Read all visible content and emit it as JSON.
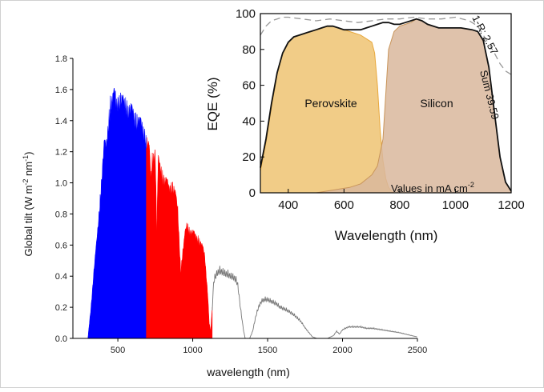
{
  "chart_data": [
    {
      "type": "area",
      "xlabel": "wavelength (nm)",
      "ylabel": "Global tilt (W m-2 nm-1)",
      "ylabel_parts": {
        "a": "Global tilt (W m",
        "sup1": "-2",
        "b": " nm",
        "sup2": "-1",
        "c": ")"
      },
      "xlim": [
        200,
        2500
      ],
      "ylim": [
        0,
        1.8
      ],
      "xticks": [
        "500",
        "1000",
        "1500",
        "2000",
        "2500"
      ],
      "yticks": [
        "0.0",
        "0.2",
        "0.4",
        "0.6",
        "0.8",
        "1.0",
        "1.2",
        "1.4",
        "1.6",
        "1.8"
      ],
      "grid": false,
      "colors": {
        "perovskite_band": "#0000ff",
        "silicon_band": "#ff0000",
        "unused": "#777777"
      },
      "bands": [
        {
          "from": 300,
          "to": 690,
          "color": "#0000ff"
        },
        {
          "from": 690,
          "to": 1130,
          "color": "#ff0000"
        }
      ],
      "series": [
        {
          "x": [
            300,
            320,
            340,
            360,
            380,
            400,
            410,
            420,
            430,
            440,
            450,
            460,
            470,
            480,
            490,
            500,
            520,
            540,
            560,
            580,
            600,
            620,
            640,
            660,
            680,
            690,
            700,
            710,
            720,
            730,
            740,
            750,
            760,
            770,
            780,
            800,
            820,
            840,
            860,
            880,
            900,
            920,
            930,
            940,
            950,
            960,
            980,
            1000,
            1020,
            1040,
            1060,
            1080,
            1100,
            1110,
            1120,
            1130,
            1140,
            1160,
            1180,
            1200,
            1220,
            1240,
            1260,
            1280,
            1300,
            1320,
            1340,
            1350,
            1380,
            1400,
            1420,
            1440,
            1460,
            1480,
            1500,
            1520,
            1540,
            1560,
            1580,
            1600,
            1640,
            1680,
            1720,
            1760,
            1800,
            1830,
            1860,
            1900,
            1940,
            1960,
            1980,
            2000,
            2040,
            2080,
            2120,
            2160,
            2200,
            2260,
            2320,
            2380,
            2420,
            2460,
            2500
          ],
          "y": [
            0.0,
            0.2,
            0.45,
            0.65,
            0.9,
            1.18,
            1.3,
            1.25,
            1.35,
            1.48,
            1.56,
            1.58,
            1.6,
            1.62,
            1.55,
            1.6,
            1.58,
            1.56,
            1.55,
            1.52,
            1.5,
            1.46,
            1.45,
            1.4,
            1.38,
            1.3,
            1.3,
            1.25,
            1.05,
            1.2,
            1.22,
            1.25,
            0.7,
            1.18,
            1.15,
            1.08,
            1.05,
            1.0,
            1.02,
            0.98,
            0.85,
            0.45,
            0.55,
            0.62,
            0.7,
            0.75,
            0.72,
            0.7,
            0.68,
            0.66,
            0.62,
            0.55,
            0.3,
            0.1,
            0.05,
            0.2,
            0.4,
            0.45,
            0.47,
            0.46,
            0.45,
            0.44,
            0.43,
            0.42,
            0.38,
            0.2,
            0.05,
            0.0,
            0.0,
            0.05,
            0.15,
            0.22,
            0.26,
            0.27,
            0.27,
            0.26,
            0.25,
            0.24,
            0.22,
            0.21,
            0.19,
            0.16,
            0.12,
            0.06,
            0.01,
            0.0,
            0.0,
            0.0,
            0.02,
            0.05,
            0.03,
            0.06,
            0.08,
            0.08,
            0.08,
            0.07,
            0.07,
            0.06,
            0.05,
            0.04,
            0.03,
            0.02,
            0.01
          ]
        }
      ]
    },
    {
      "type": "area",
      "xlabel": "Wavelength (nm)",
      "ylabel": "EQE (%)",
      "xlim": [
        300,
        1200
      ],
      "ylim": [
        0,
        100
      ],
      "xticks": [
        "400",
        "600",
        "800",
        "1000",
        "1200"
      ],
      "yticks": [
        "0",
        "20",
        "40",
        "60",
        "80",
        "100"
      ],
      "grid": false,
      "colors": {
        "perovskite": "#f0c67a",
        "silicon": "#d9b79c",
        "overlap": "#c9955a",
        "sum_line": "#111111",
        "one_minus_r": "#999999"
      },
      "annotations": {
        "perovskite_label": "Perovskite",
        "silicon_label": "Silicon",
        "sum_label": "Sum 39.59",
        "r_label": "1-R: 2.57",
        "units_prefix": "Values in mA cm",
        "units_sup": "-2"
      },
      "series": [
        {
          "name": "Perovskite",
          "x": [
            300,
            320,
            340,
            360,
            380,
            400,
            420,
            440,
            460,
            480,
            500,
            520,
            540,
            560,
            580,
            600,
            620,
            640,
            660,
            680,
            700,
            710,
            720,
            730,
            740,
            750,
            760,
            770,
            780,
            790,
            800
          ],
          "y": [
            12,
            28,
            48,
            66,
            78,
            84,
            87,
            88,
            89,
            90,
            91,
            92,
            93,
            93,
            92,
            91,
            90,
            89,
            88,
            86,
            84,
            78,
            60,
            35,
            18,
            8,
            3,
            1,
            0,
            0,
            0
          ]
        },
        {
          "name": "Silicon",
          "x": [
            500,
            540,
            580,
            620,
            660,
            700,
            720,
            740,
            750,
            760,
            780,
            800,
            820,
            840,
            860,
            880,
            900,
            940,
            980,
            1020,
            1060,
            1080,
            1100,
            1120,
            1140,
            1160,
            1180,
            1200
          ],
          "y": [
            0,
            1,
            2,
            3,
            5,
            10,
            15,
            30,
            55,
            80,
            90,
            93,
            94,
            95,
            97,
            96,
            94,
            92,
            92,
            92,
            91,
            90,
            85,
            70,
            45,
            20,
            6,
            1
          ]
        },
        {
          "name": "Sum",
          "x": [
            300,
            320,
            340,
            360,
            380,
            400,
            420,
            440,
            460,
            480,
            500,
            520,
            540,
            560,
            580,
            600,
            620,
            640,
            660,
            680,
            700,
            720,
            740,
            760,
            780,
            800,
            820,
            840,
            860,
            880,
            900,
            940,
            980,
            1020,
            1060,
            1080,
            1100,
            1120,
            1140,
            1160,
            1180,
            1200
          ],
          "y": [
            14,
            30,
            50,
            67,
            78,
            84,
            87,
            88,
            89,
            90,
            91,
            92,
            93,
            93,
            92,
            91,
            91,
            91,
            91,
            92,
            93,
            94,
            95,
            95,
            94,
            94,
            95,
            96,
            97,
            96,
            94,
            92,
            92,
            92,
            91,
            90,
            85,
            70,
            45,
            20,
            6,
            1
          ]
        },
        {
          "name": "1-R",
          "x": [
            300,
            320,
            340,
            360,
            380,
            400,
            450,
            500,
            550,
            600,
            650,
            700,
            750,
            800,
            850,
            900,
            950,
            1000,
            1050,
            1080,
            1100,
            1120,
            1140,
            1160,
            1180,
            1200
          ],
          "y": [
            88,
            93,
            96,
            97,
            98,
            98,
            97,
            96,
            97,
            96,
            95,
            96,
            97,
            97,
            98,
            97,
            97,
            98,
            96,
            93,
            88,
            83,
            78,
            72,
            68,
            66
          ]
        }
      ]
    }
  ]
}
